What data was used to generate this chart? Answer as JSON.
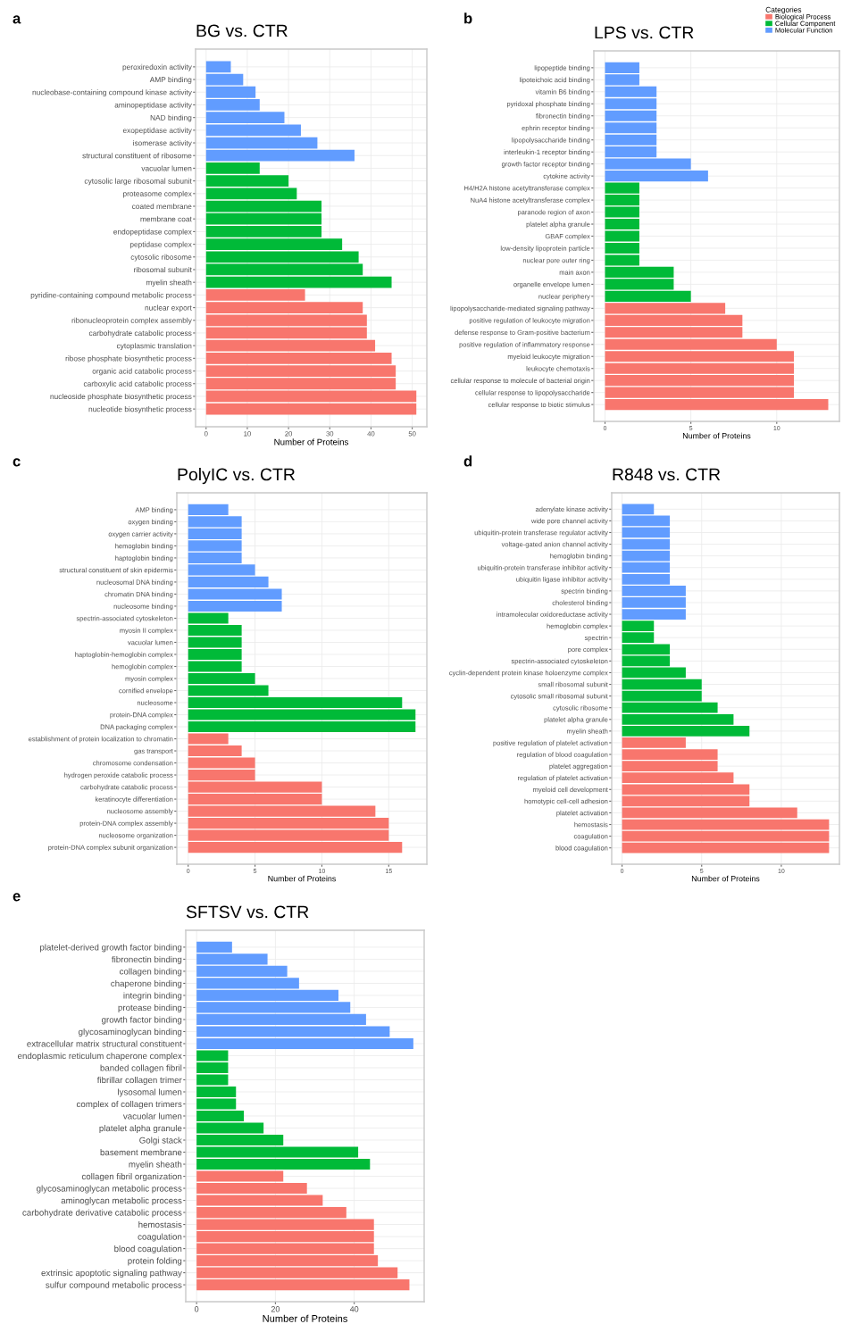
{
  "chart_data": [
    {
      "type": "bar",
      "orientation": "horizontal",
      "title": "BG vs. CTR",
      "xlabel": "Number of Proteins",
      "annotations": [
        "a"
      ],
      "grid": true,
      "categories": [
        "peroxiredoxin activity",
        "AMP binding",
        "nucleobase-containing compound kinase activity",
        "aminopeptidase activity",
        "NAD binding",
        "exopeptidase activity",
        "isomerase activity",
        "structural constituent of ribosome",
        "vacuolar lumen",
        "cytosolic large ribosomal subunit",
        "proteasome complex",
        "coated membrane",
        "membrane coat",
        "endopeptidase complex",
        "peptidase complex",
        "cytosolic ribosome",
        "ribosomal subunit",
        "myelin sheath",
        "pyridine-containing compound metabolic process",
        "nuclear export",
        "ribonucleoprotein complex assembly",
        "carbohydrate catabolic process",
        "cytoplasmic translation",
        "ribose phosphate biosynthetic process",
        "organic acid catabolic process",
        "carboxylic acid catabolic process",
        "nucleoside phosphate biosynthetic process",
        "nucleotide biosynthetic process"
      ],
      "series": [
        {
          "color": "#f8766d",
          "values": [
            null,
            null,
            null,
            null,
            null,
            null,
            null,
            null,
            null,
            null,
            null,
            null,
            null,
            null,
            null,
            null,
            null,
            null,
            24,
            38,
            39,
            39,
            41,
            45,
            46,
            46,
            51,
            51
          ]
        },
        {
          "color": "#00ba38",
          "values": [
            null,
            null,
            null,
            null,
            null,
            null,
            null,
            null,
            13,
            20,
            22,
            28,
            28,
            28,
            33,
            37,
            38,
            45,
            null,
            null,
            null,
            null,
            null,
            null,
            null,
            null,
            null,
            null
          ]
        },
        {
          "color": "#619cff",
          "values": [
            6,
            9,
            12,
            13,
            19,
            23,
            27,
            36,
            null,
            null,
            null,
            null,
            null,
            null,
            null,
            null,
            null,
            null,
            null,
            null,
            null,
            null,
            null,
            null,
            null,
            null,
            null,
            null
          ]
        }
      ],
      "xlim": [
        -2.55,
        53.55
      ],
      "xticks": [
        0,
        10,
        20,
        30,
        40,
        50
      ]
    },
    {
      "type": "bar",
      "orientation": "horizontal",
      "title": "LPS vs. CTR",
      "xlabel": "Number of Proteins",
      "annotations": [
        "b"
      ],
      "grid": true,
      "legend": "top right",
      "legend_title": "Categories",
      "categories": [
        "lipopeptide binding",
        "lipoteichoic acid binding",
        "vitamin B6 binding",
        "pyridoxal phosphate binding",
        "fibronectin binding",
        "ephrin receptor binding",
        "lipopolysaccharide binding",
        "interleukin-1 receptor binding",
        "growth factor receptor binding",
        "cytokine activity",
        "H4/H2A histone acetyltransferase complex",
        "NuA4 histone acetyltransferase complex",
        "paranode region of axon",
        "platelet alpha granule",
        "GBAF complex",
        "low-density lipoprotein particle",
        "nuclear pore outer ring",
        "main axon",
        "organelle envelope lumen",
        "nuclear periphery",
        "lipopolysaccharide-mediated signaling pathway",
        "positive regulation of leukocyte migration",
        "defense response to Gram-positive bacterium",
        "positive regulation of inflammatory response",
        "myeloid leukocyte migration",
        "leukocyte chemotaxis",
        "cellular response to molecule of bacterial origin",
        "cellular response to lipopolysaccharide",
        "cellular response to biotic stimulus"
      ],
      "series": [
        {
          "name": "Biological Process",
          "color": "#f8766d",
          "values": [
            null,
            null,
            null,
            null,
            null,
            null,
            null,
            null,
            null,
            null,
            null,
            null,
            null,
            null,
            null,
            null,
            null,
            null,
            null,
            null,
            7,
            8,
            8,
            10,
            11,
            11,
            11,
            11,
            13
          ]
        },
        {
          "name": "Cellular Component",
          "color": "#00ba38",
          "values": [
            null,
            null,
            null,
            null,
            null,
            null,
            null,
            null,
            null,
            null,
            2,
            2,
            2,
            2,
            2,
            2,
            2,
            4,
            4,
            5,
            null,
            null,
            null,
            null,
            null,
            null,
            null,
            null,
            null
          ]
        },
        {
          "name": "Molecular Function",
          "color": "#619cff",
          "values": [
            2,
            2,
            3,
            3,
            3,
            3,
            3,
            3,
            5,
            6,
            null,
            null,
            null,
            null,
            null,
            null,
            null,
            null,
            null,
            null,
            null,
            null,
            null,
            null,
            null,
            null,
            null,
            null,
            null
          ]
        }
      ],
      "xlim": [
        -0.65,
        13.65
      ],
      "xticks": [
        0,
        5,
        10
      ]
    },
    {
      "type": "bar",
      "orientation": "horizontal",
      "title": "PolyIC vs. CTR",
      "xlabel": "Number of Proteins",
      "annotations": [
        "c"
      ],
      "grid": true,
      "categories": [
        "AMP binding",
        "oxygen binding",
        "oxygen carrier activity",
        "hemoglobin binding",
        "haptoglobin binding",
        "structural constituent of skin epidermis",
        "nucleosomal DNA binding",
        "chromatin DNA binding",
        "nucleosome binding",
        "spectrin-associated cytoskeleton",
        "myosin II complex",
        "vacuolar lumen",
        "haptoglobin-hemoglobin complex",
        "hemoglobin complex",
        "myosin complex",
        "cornified envelope",
        "nucleosome",
        "protein-DNA complex",
        "DNA packaging complex",
        "establishment of protein localization to chromatin",
        "gas transport",
        "chromosome condensation",
        "hydrogen peroxide catabolic process",
        "carbohydrate catabolic process",
        "keratinocyte differentiation",
        "nucleosome assembly",
        "protein-DNA complex assembly",
        "nucleosome organization",
        "protein-DNA complex subunit organization"
      ],
      "series": [
        {
          "color": "#f8766d",
          "values": [
            null,
            null,
            null,
            null,
            null,
            null,
            null,
            null,
            null,
            null,
            null,
            null,
            null,
            null,
            null,
            null,
            null,
            null,
            null,
            3,
            4,
            5,
            5,
            10,
            10,
            14,
            15,
            15,
            16
          ]
        },
        {
          "color": "#00ba38",
          "values": [
            null,
            null,
            null,
            null,
            null,
            null,
            null,
            null,
            null,
            3,
            4,
            4,
            4,
            4,
            5,
            6,
            16,
            17,
            17,
            null,
            null,
            null,
            null,
            null,
            null,
            null,
            null,
            null,
            null
          ]
        },
        {
          "color": "#619cff",
          "values": [
            3,
            4,
            4,
            4,
            4,
            5,
            6,
            7,
            7,
            null,
            null,
            null,
            null,
            null,
            null,
            null,
            null,
            null,
            null,
            null,
            null,
            null,
            null,
            null,
            null,
            null,
            null,
            null,
            null
          ]
        }
      ],
      "xlim": [
        -0.85,
        17.85
      ],
      "xticks": [
        0,
        5,
        10,
        15
      ]
    },
    {
      "type": "bar",
      "orientation": "horizontal",
      "title": "R848 vs. CTR",
      "xlabel": "Number of Proteins",
      "annotations": [
        "d"
      ],
      "grid": true,
      "categories": [
        "adenylate kinase activity",
        "wide pore channel activity",
        "ubiquitin-protein transferase regulator activity",
        "voltage-gated anion channel activity",
        "hemoglobin binding",
        "ubiquitin-protein transferase inhibitor activity",
        "ubiquitin ligase inhibitor activity",
        "spectrin binding",
        "cholesterol binding",
        "intramolecular oxidoreductase activity",
        "hemoglobin complex",
        "spectrin",
        "pore complex",
        "spectrin-associated cytoskeleton",
        "cyclin-dependent protein kinase holoenzyme complex",
        "small ribosomal subunit",
        "cytosolic small ribosomal subunit",
        "cytosolic ribosome",
        "platelet alpha granule",
        "myelin sheath",
        "positive regulation of platelet activation",
        "regulation of blood coagulation",
        "platelet aggregation",
        "regulation of platelet activation",
        "myeloid cell development",
        "homotypic cell-cell adhesion",
        "platelet activation",
        "hemostasis",
        "coagulation",
        "blood coagulation"
      ],
      "series": [
        {
          "color": "#f8766d",
          "values": [
            null,
            null,
            null,
            null,
            null,
            null,
            null,
            null,
            null,
            null,
            null,
            null,
            null,
            null,
            null,
            null,
            null,
            null,
            null,
            null,
            4,
            6,
            6,
            7,
            8,
            8,
            11,
            13,
            13,
            13
          ]
        },
        {
          "color": "#00ba38",
          "values": [
            null,
            null,
            null,
            null,
            null,
            null,
            null,
            null,
            null,
            null,
            2,
            2,
            3,
            3,
            4,
            5,
            5,
            6,
            7,
            8,
            null,
            null,
            null,
            null,
            null,
            null,
            null,
            null,
            null,
            null
          ]
        },
        {
          "color": "#619cff",
          "values": [
            2,
            3,
            3,
            3,
            3,
            3,
            3,
            4,
            4,
            4,
            null,
            null,
            null,
            null,
            null,
            null,
            null,
            null,
            null,
            null,
            null,
            null,
            null,
            null,
            null,
            null,
            null,
            null,
            null,
            null
          ]
        }
      ],
      "xlim": [
        -0.65,
        13.65
      ],
      "xticks": [
        0,
        5,
        10
      ]
    },
    {
      "type": "bar",
      "orientation": "horizontal",
      "title": "SFTSV vs. CTR",
      "xlabel": "Number of Proteins",
      "annotations": [
        "e"
      ],
      "grid": true,
      "categories": [
        "platelet-derived growth factor binding",
        "fibronectin binding",
        "collagen binding",
        "chaperone binding",
        "integrin binding",
        "protease binding",
        "growth factor binding",
        "glycosaminoglycan binding",
        "extracellular matrix structural constituent",
        "endoplasmic reticulum chaperone complex",
        "banded collagen fibril",
        "fibrillar collagen trimer",
        "lysosomal lumen",
        "complex of collagen trimers",
        "vacuolar lumen",
        "platelet alpha granule",
        "Golgi stack",
        "basement membrane",
        "myelin sheath",
        "collagen fibril organization",
        "glycosaminoglycan metabolic process",
        "aminoglycan metabolic process",
        "carbohydrate derivative catabolic process",
        "hemostasis",
        "coagulation",
        "blood coagulation",
        "protein folding",
        "extrinsic apoptotic signaling pathway",
        "sulfur compound metabolic process"
      ],
      "series": [
        {
          "color": "#f8766d",
          "values": [
            null,
            null,
            null,
            null,
            null,
            null,
            null,
            null,
            null,
            null,
            null,
            null,
            null,
            null,
            null,
            null,
            null,
            null,
            null,
            22,
            28,
            32,
            38,
            45,
            45,
            45,
            46,
            51,
            54
          ]
        },
        {
          "color": "#00ba38",
          "values": [
            null,
            null,
            null,
            null,
            null,
            null,
            null,
            null,
            null,
            8,
            8,
            8,
            10,
            10,
            12,
            17,
            22,
            41,
            44,
            null,
            null,
            null,
            null,
            null,
            null,
            null,
            null,
            null,
            null
          ]
        },
        {
          "color": "#619cff",
          "values": [
            9,
            18,
            23,
            26,
            36,
            39,
            43,
            49,
            55,
            null,
            null,
            null,
            null,
            null,
            null,
            null,
            null,
            null,
            null,
            null,
            null,
            null,
            null,
            null,
            null,
            null,
            null,
            null,
            null
          ]
        }
      ],
      "xlim": [
        -2.75,
        57.75
      ],
      "xticks": [
        0,
        20,
        40
      ]
    }
  ]
}
